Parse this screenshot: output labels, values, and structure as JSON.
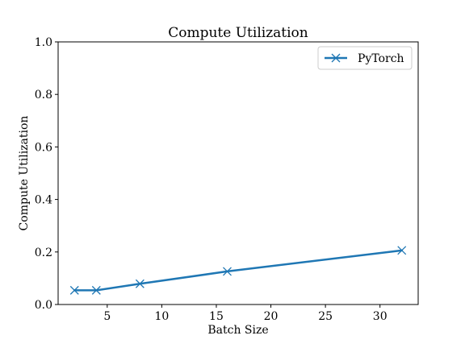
{
  "chart_data": {
    "type": "line",
    "title": "Compute Utilization",
    "xlabel": "Batch Size",
    "ylabel": "Compute Utilization",
    "xlim": [
      0.5,
      33.5
    ],
    "ylim": [
      0.0,
      1.0
    ],
    "xticks": [
      5,
      10,
      15,
      20,
      25,
      30
    ],
    "xtick_labels": [
      "5",
      "10",
      "15",
      "20",
      "25",
      "30"
    ],
    "yticks": [
      0.0,
      0.2,
      0.4,
      0.6,
      0.8,
      1.0
    ],
    "ytick_labels": [
      "0.0",
      "0.2",
      "0.4",
      "0.6",
      "0.8",
      "1.0"
    ],
    "grid": false,
    "legend_position": "top-right",
    "series": [
      {
        "name": "PyTorch",
        "color": "#1f77b4",
        "marker": "x",
        "x": [
          2,
          4,
          8,
          16,
          32
        ],
        "y": [
          0.054,
          0.054,
          0.079,
          0.126,
          0.206
        ]
      }
    ]
  }
}
